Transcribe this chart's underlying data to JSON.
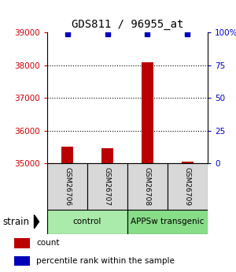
{
  "title": "GDS811 / 96955_at",
  "samples": [
    "GSM26706",
    "GSM26707",
    "GSM26708",
    "GSM26709"
  ],
  "counts": [
    35500,
    35470,
    38080,
    35060
  ],
  "percentiles": [
    99,
    99,
    99,
    99
  ],
  "ylim_left": [
    35000,
    39000
  ],
  "ylim_right": [
    0,
    100
  ],
  "yticks_left": [
    35000,
    36000,
    37000,
    38000,
    39000
  ],
  "yticks_right": [
    0,
    25,
    50,
    75,
    100
  ],
  "ytick_labels_right": [
    "0",
    "25",
    "50",
    "75",
    "100%"
  ],
  "groups": [
    {
      "label": "control",
      "indices": [
        0,
        1
      ],
      "color": "#aaeaaa"
    },
    {
      "label": "APPSw transgenic",
      "indices": [
        2,
        3
      ],
      "color": "#88dd88"
    }
  ],
  "bar_color": "#bb0000",
  "dot_color": "#0000bb",
  "background_color": "#ffffff",
  "tick_color_left": "#cc0000",
  "tick_color_right": "#0000cc",
  "bar_width": 0.3,
  "dot_size": 4
}
